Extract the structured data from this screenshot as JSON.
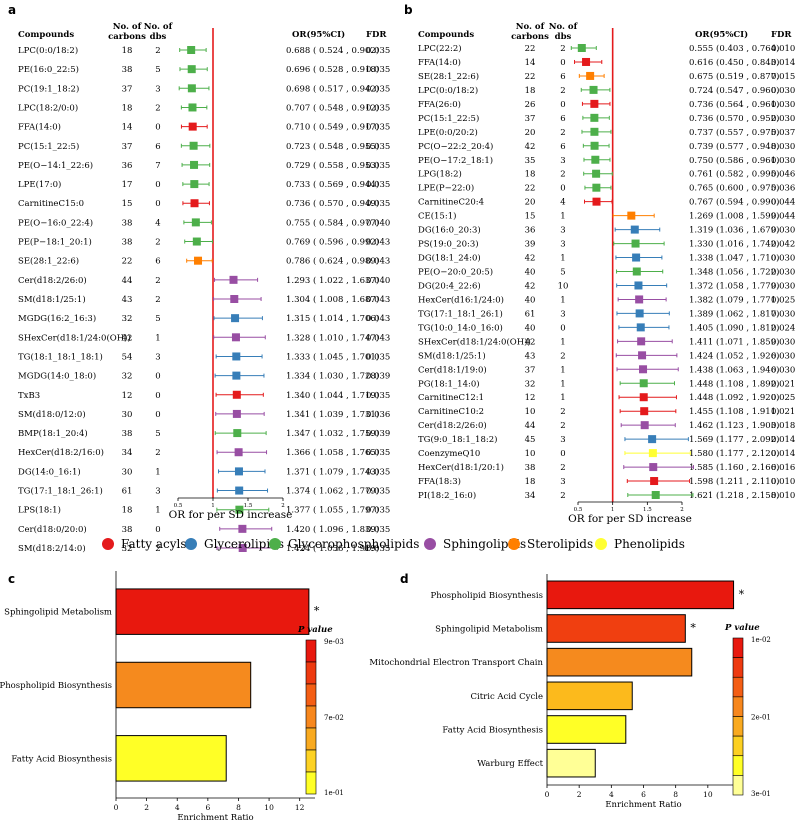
{
  "panels": {
    "a": "a",
    "b": "b",
    "c": "c",
    "d": "d"
  },
  "headers": {
    "compounds": "Compounds",
    "carbons": "No. of carbons",
    "dbs": "No. of dbs",
    "or": "OR(95%CI)",
    "fdr": "FDR"
  },
  "forest_xlabel": "OR for per SD increase",
  "legend": [
    {
      "name": "Fatty acyls",
      "color": "#e41a1c"
    },
    {
      "name": "Glycerolipids",
      "color": "#377eb8"
    },
    {
      "name": "Glycerophospholipids",
      "color": "#4daf4a"
    },
    {
      "name": "Sphingolipids",
      "color": "#984ea3"
    },
    {
      "name": "Sterolipids",
      "color": "#ff7f00"
    },
    {
      "name": "Phenolipids",
      "color": "#ffff33"
    }
  ],
  "chart_data": [
    {
      "panel": "a",
      "type": "forest",
      "xlabel": "OR for per SD increase",
      "xticks": [
        "0.5",
        "1",
        "1.5",
        "2"
      ],
      "xlim": [
        0.5,
        2
      ],
      "reference": 1,
      "rows": [
        {
          "name": "LPC(0:0/18:2)",
          "carbons": "18",
          "dbs": "2",
          "or": 0.688,
          "lo": 0.524,
          "hi": 0.902,
          "text": "0.688 ( 0.524 , 0.902)",
          "fdr": "0.035",
          "cls": "Glycerophospholipids"
        },
        {
          "name": "PE(16:0_22:5)",
          "carbons": "38",
          "dbs": "5",
          "or": 0.696,
          "lo": 0.528,
          "hi": 0.918,
          "text": "0.696 ( 0.528 , 0.918)",
          "fdr": "0.035",
          "cls": "Glycerophospholipids"
        },
        {
          "name": "PC(19:1_18:2)",
          "carbons": "37",
          "dbs": "3",
          "or": 0.698,
          "lo": 0.517,
          "hi": 0.942,
          "text": "0.698 ( 0.517 , 0.942)",
          "fdr": "0.035",
          "cls": "Glycerophospholipids"
        },
        {
          "name": "LPC(18:2/0:0)",
          "carbons": "18",
          "dbs": "2",
          "or": 0.707,
          "lo": 0.548,
          "hi": 0.912,
          "text": "0.707 ( 0.548 , 0.912)",
          "fdr": "0.035",
          "cls": "Glycerophospholipids"
        },
        {
          "name": "FFA(14:0)",
          "carbons": "14",
          "dbs": "0",
          "or": 0.71,
          "lo": 0.549,
          "hi": 0.917,
          "text": "0.710 ( 0.549 , 0.917)",
          "fdr": "0.035",
          "cls": "Fatty acyls"
        },
        {
          "name": "PC(15:1_22:5)",
          "carbons": "37",
          "dbs": "6",
          "or": 0.723,
          "lo": 0.548,
          "hi": 0.955,
          "text": "0.723 ( 0.548 , 0.955)",
          "fdr": "0.035",
          "cls": "Glycerophospholipids"
        },
        {
          "name": "PE(O−14:1_22:6)",
          "carbons": "36",
          "dbs": "7",
          "or": 0.729,
          "lo": 0.558,
          "hi": 0.953,
          "text": "0.729 ( 0.558 , 0.953)",
          "fdr": "0.035",
          "cls": "Glycerophospholipids"
        },
        {
          "name": "LPE(17:0)",
          "carbons": "17",
          "dbs": "0",
          "or": 0.733,
          "lo": 0.569,
          "hi": 0.944,
          "text": "0.733 ( 0.569 , 0.944)",
          "fdr": "0.035",
          "cls": "Glycerophospholipids"
        },
        {
          "name": "CarnitineC15:0",
          "carbons": "15",
          "dbs": "0",
          "or": 0.736,
          "lo": 0.57,
          "hi": 0.949,
          "text": "0.736 ( 0.570 , 0.949)",
          "fdr": "0.035",
          "cls": "Fatty acyls"
        },
        {
          "name": "PE(O−16:0_22:4)",
          "carbons": "38",
          "dbs": "4",
          "or": 0.755,
          "lo": 0.584,
          "hi": 0.977,
          "text": "0.755 ( 0.584 , 0.977)",
          "fdr": "0.040",
          "cls": "Glycerophospholipids"
        },
        {
          "name": "PE(P−18:1_20:1)",
          "carbons": "38",
          "dbs": "2",
          "or": 0.769,
          "lo": 0.596,
          "hi": 0.992,
          "text": "0.769 ( 0.596 , 0.992)",
          "fdr": "0.043",
          "cls": "Glycerophospholipids"
        },
        {
          "name": "SE(28:1_22:6)",
          "carbons": "22",
          "dbs": "6",
          "or": 0.786,
          "lo": 0.624,
          "hi": 0.989,
          "text": "0.786 ( 0.624 , 0.989)",
          "fdr": "0.043",
          "cls": "Sterolipids"
        },
        {
          "name": "Cer(d18:2/26:0)",
          "carbons": "44",
          "dbs": "2",
          "or": 1.293,
          "lo": 1.022,
          "hi": 1.637,
          "text": "1.293 ( 1.022 , 1.637)",
          "fdr": "0.040",
          "cls": "Sphingolipids"
        },
        {
          "name": "SM(d18:1/25:1)",
          "carbons": "43",
          "dbs": "2",
          "or": 1.304,
          "lo": 1.008,
          "hi": 1.687,
          "text": "1.304 ( 1.008 , 1.687)",
          "fdr": "0.043",
          "cls": "Sphingolipids"
        },
        {
          "name": "MGDG(16:2_16:3)",
          "carbons": "32",
          "dbs": "5",
          "or": 1.315,
          "lo": 1.014,
          "hi": 1.706,
          "text": "1.315 ( 1.014 , 1.706)",
          "fdr": "0.043",
          "cls": "Glycerolipids"
        },
        {
          "name": "SHexCer(d18:1/24:0(OH))",
          "carbons": "42",
          "dbs": "1",
          "or": 1.328,
          "lo": 1.01,
          "hi": 1.747,
          "text": "1.328 ( 1.010 , 1.747)",
          "fdr": "0.043",
          "cls": "Sphingolipids"
        },
        {
          "name": "TG(18:1_18:1_18:1)",
          "carbons": "54",
          "dbs": "3",
          "or": 1.333,
          "lo": 1.045,
          "hi": 1.701,
          "text": "1.333 ( 1.045 , 1.701)",
          "fdr": "0.035",
          "cls": "Glycerolipids"
        },
        {
          "name": "MGDG(14:0_18:0)",
          "carbons": "32",
          "dbs": "0",
          "or": 1.334,
          "lo": 1.03,
          "hi": 1.728,
          "text": "1.334 ( 1.030 , 1.728)",
          "fdr": "0.039",
          "cls": "Glycerolipids"
        },
        {
          "name": "TxB3",
          "carbons": "12",
          "dbs": "0",
          "or": 1.34,
          "lo": 1.044,
          "hi": 1.719,
          "text": "1.340 ( 1.044 , 1.719)",
          "fdr": "0.035",
          "cls": "Fatty acyls"
        },
        {
          "name": "SM(d18:0/12:0)",
          "carbons": "30",
          "dbs": "0",
          "or": 1.341,
          "lo": 1.039,
          "hi": 1.731,
          "text": "1.341 ( 1.039 , 1.731)",
          "fdr": "0.036",
          "cls": "Sphingolipids"
        },
        {
          "name": "BMP(18:1_20:4)",
          "carbons": "38",
          "dbs": "5",
          "or": 1.347,
          "lo": 1.032,
          "hi": 1.759,
          "text": "1.347 ( 1.032 , 1.759)",
          "fdr": "0.039",
          "cls": "Glycerophospholipids"
        },
        {
          "name": "HexCer(d18:2/16:0)",
          "carbons": "34",
          "dbs": "2",
          "or": 1.366,
          "lo": 1.058,
          "hi": 1.765,
          "text": "1.366 ( 1.058 , 1.765)",
          "fdr": "0.035",
          "cls": "Sphingolipids"
        },
        {
          "name": "DG(14:0_16:1)",
          "carbons": "30",
          "dbs": "1",
          "or": 1.371,
          "lo": 1.079,
          "hi": 1.743,
          "text": "1.371 ( 1.079 , 1.743)",
          "fdr": "0.035",
          "cls": "Glycerolipids"
        },
        {
          "name": "TG(17:1_18:1_26:1)",
          "carbons": "61",
          "dbs": "3",
          "or": 1.374,
          "lo": 1.062,
          "hi": 1.779,
          "text": "1.374 ( 1.062 , 1.779)",
          "fdr": "0.035",
          "cls": "Glycerolipids"
        },
        {
          "name": "LPS(18:1)",
          "carbons": "18",
          "dbs": "1",
          "or": 1.377,
          "lo": 1.055,
          "hi": 1.797,
          "text": "1.377 ( 1.055 , 1.797)",
          "fdr": "0.035",
          "cls": "Glycerophospholipids"
        },
        {
          "name": "Cer(d18:0/20:0)",
          "carbons": "38",
          "dbs": "0",
          "or": 1.42,
          "lo": 1.096,
          "hi": 1.839,
          "text": "1.420 ( 1.096 , 1.839)",
          "fdr": "0.035",
          "cls": "Sphingolipids"
        },
        {
          "name": "SM(d18:2/14:0)",
          "carbons": "32",
          "dbs": "2",
          "or": 1.424,
          "lo": 1.056,
          "hi": 1.919,
          "text": "1.424 ( 1.056 , 1.919)",
          "fdr": "0.035",
          "cls": "Sphingolipids"
        }
      ]
    },
    {
      "panel": "b",
      "type": "forest",
      "xlabel": "OR for per SD increase",
      "xticks": [
        "0.5",
        "1",
        "1.5",
        "2"
      ],
      "xlim": [
        0.5,
        2
      ],
      "reference": 1,
      "rows": [
        {
          "name": "LPC(22:2)",
          "carbons": "22",
          "dbs": "2",
          "or": 0.555,
          "lo": 0.403,
          "hi": 0.764,
          "text": "0.555 (0.403 , 0.764)",
          "fdr": "0.010",
          "cls": "Glycerophospholipids"
        },
        {
          "name": "FFA(14:0)",
          "carbons": "14",
          "dbs": "0",
          "or": 0.616,
          "lo": 0.45,
          "hi": 0.843,
          "text": "0.616 (0.450 , 0.843)",
          "fdr": "0.014",
          "cls": "Fatty acyls"
        },
        {
          "name": "SE(28:1_22:6)",
          "carbons": "22",
          "dbs": "6",
          "or": 0.675,
          "lo": 0.519,
          "hi": 0.877,
          "text": "0.675 (0.519 , 0.877)",
          "fdr": "0.015",
          "cls": "Sterolipids"
        },
        {
          "name": "LPC(0:0/18:2)",
          "carbons": "18",
          "dbs": "2",
          "or": 0.724,
          "lo": 0.547,
          "hi": 0.96,
          "text": "0.724 (0.547 , 0.960)",
          "fdr": "0.030",
          "cls": "Glycerophospholipids"
        },
        {
          "name": "FFA(26:0)",
          "carbons": "26",
          "dbs": "0",
          "or": 0.736,
          "lo": 0.564,
          "hi": 0.961,
          "text": "0.736 (0.564 , 0.961)",
          "fdr": "0.030",
          "cls": "Fatty acyls"
        },
        {
          "name": "PC(15:1_22:5)",
          "carbons": "37",
          "dbs": "6",
          "or": 0.736,
          "lo": 0.57,
          "hi": 0.952,
          "text": "0.736 (0.570 , 0.952)",
          "fdr": "0.030",
          "cls": "Glycerophospholipids"
        },
        {
          "name": "LPE(0:0/20:2)",
          "carbons": "20",
          "dbs": "2",
          "or": 0.737,
          "lo": 0.557,
          "hi": 0.975,
          "text": "0.737 (0.557 , 0.975)",
          "fdr": "0.037",
          "cls": "Glycerophospholipids"
        },
        {
          "name": "PC(O−22:2_20:4)",
          "carbons": "42",
          "dbs": "6",
          "or": 0.739,
          "lo": 0.577,
          "hi": 0.948,
          "text": "0.739 (0.577 , 0.948)",
          "fdr": "0.030",
          "cls": "Glycerophospholipids"
        },
        {
          "name": "PE(O−17:2_18:1)",
          "carbons": "35",
          "dbs": "3",
          "or": 0.75,
          "lo": 0.586,
          "hi": 0.961,
          "text": "0.750 (0.586 , 0.961)",
          "fdr": "0.030",
          "cls": "Glycerophospholipids"
        },
        {
          "name": "LPG(18:2)",
          "carbons": "18",
          "dbs": "2",
          "or": 0.761,
          "lo": 0.582,
          "hi": 0.995,
          "text": "0.761 (0.582 , 0.995)",
          "fdr": "0.046",
          "cls": "Glycerophospholipids"
        },
        {
          "name": "LPE(P−22:0)",
          "carbons": "22",
          "dbs": "0",
          "or": 0.765,
          "lo": 0.6,
          "hi": 0.975,
          "text": "0.765 (0.600 , 0.975)",
          "fdr": "0.036",
          "cls": "Glycerophospholipids"
        },
        {
          "name": "CarnitineC20:4",
          "carbons": "20",
          "dbs": "4",
          "or": 0.767,
          "lo": 0.594,
          "hi": 0.99,
          "text": "0.767 (0.594 , 0.990)",
          "fdr": "0.044",
          "cls": "Fatty acyls"
        },
        {
          "name": "CE(15:1)",
          "carbons": "15",
          "dbs": "1",
          "or": 1.269,
          "lo": 1.008,
          "hi": 1.599,
          "text": "1.269 (1.008 , 1.599)",
          "fdr": "0.044",
          "cls": "Sterolipids"
        },
        {
          "name": "DG(16:0_20:3)",
          "carbons": "36",
          "dbs": "3",
          "or": 1.319,
          "lo": 1.036,
          "hi": 1.679,
          "text": "1.319 (1.036 , 1.679)",
          "fdr": "0.030",
          "cls": "Glycerolipids"
        },
        {
          "name": "PS(19:0_20:3)",
          "carbons": "39",
          "dbs": "3",
          "or": 1.33,
          "lo": 1.016,
          "hi": 1.742,
          "text": "1.330 (1.016 , 1.742)",
          "fdr": "0.042",
          "cls": "Glycerophospholipids"
        },
        {
          "name": "DG(18:1_24:0)",
          "carbons": "42",
          "dbs": "1",
          "or": 1.338,
          "lo": 1.047,
          "hi": 1.71,
          "text": "1.338 (1.047 , 1.710)",
          "fdr": "0.030",
          "cls": "Glycerolipids"
        },
        {
          "name": "PE(O−20:0_20:5)",
          "carbons": "40",
          "dbs": "5",
          "or": 1.348,
          "lo": 1.056,
          "hi": 1.722,
          "text": "1.348 (1.056 , 1.722)",
          "fdr": "0.030",
          "cls": "Glycerophospholipids"
        },
        {
          "name": "DG(20:4_22:6)",
          "carbons": "42",
          "dbs": "10",
          "or": 1.372,
          "lo": 1.058,
          "hi": 1.779,
          "text": "1.372 (1.058 , 1.779)",
          "fdr": "0.030",
          "cls": "Glycerolipids"
        },
        {
          "name": "HexCer(d16:1/24:0)",
          "carbons": "40",
          "dbs": "1",
          "or": 1.382,
          "lo": 1.079,
          "hi": 1.771,
          "text": "1.382 (1.079 , 1.771)",
          "fdr": "0.025",
          "cls": "Sphingolipids"
        },
        {
          "name": "TG(17:1_18:1_26:1)",
          "carbons": "61",
          "dbs": "3",
          "or": 1.389,
          "lo": 1.062,
          "hi": 1.817,
          "text": "1.389 (1.062 , 1.817)",
          "fdr": "0.030",
          "cls": "Glycerolipids"
        },
        {
          "name": "TG(10:0_14:0_16:0)",
          "carbons": "40",
          "dbs": "0",
          "or": 1.405,
          "lo": 1.09,
          "hi": 1.812,
          "text": "1.405 (1.090 , 1.812)",
          "fdr": "0.024",
          "cls": "Glycerolipids"
        },
        {
          "name": "SHexCer(d18:1/24:0(OH))",
          "carbons": "42",
          "dbs": "1",
          "or": 1.411,
          "lo": 1.071,
          "hi": 1.859,
          "text": "1.411 (1.071 , 1.859)",
          "fdr": "0.030",
          "cls": "Sphingolipids"
        },
        {
          "name": "SM(d18:1/25:1)",
          "carbons": "43",
          "dbs": "2",
          "or": 1.424,
          "lo": 1.052,
          "hi": 1.926,
          "text": "1.424 (1.052 , 1.926)",
          "fdr": "0.030",
          "cls": "Sphingolipids"
        },
        {
          "name": "Cer(d18:1/19:0)",
          "carbons": "37",
          "dbs": "1",
          "or": 1.438,
          "lo": 1.063,
          "hi": 1.946,
          "text": "1.438 (1.063 , 1.946)",
          "fdr": "0.030",
          "cls": "Sphingolipids"
        },
        {
          "name": "PG(18:1_14:0)",
          "carbons": "32",
          "dbs": "1",
          "or": 1.448,
          "lo": 1.108,
          "hi": 1.892,
          "text": "1.448 (1.108 , 1.892)",
          "fdr": "0.021",
          "cls": "Glycerophospholipids"
        },
        {
          "name": "CarnitineC12:1",
          "carbons": "12",
          "dbs": "1",
          "or": 1.448,
          "lo": 1.092,
          "hi": 1.92,
          "text": "1.448 (1.092 , 1.920)",
          "fdr": "0.025",
          "cls": "Fatty acyls"
        },
        {
          "name": "CarnitineC10:2",
          "carbons": "10",
          "dbs": "2",
          "or": 1.455,
          "lo": 1.108,
          "hi": 1.911,
          "text": "1.455 (1.108 , 1.911)",
          "fdr": "0.021",
          "cls": "Fatty acyls"
        },
        {
          "name": "Cer(d18:2/26:0)",
          "carbons": "44",
          "dbs": "2",
          "or": 1.462,
          "lo": 1.123,
          "hi": 1.903,
          "text": "1.462 (1.123 , 1.903)",
          "fdr": "0.018",
          "cls": "Sphingolipids"
        },
        {
          "name": "TG(9:0_18:1_18:2)",
          "carbons": "45",
          "dbs": "3",
          "or": 1.569,
          "lo": 1.177,
          "hi": 2.092,
          "text": "1.569 (1.177 , 2.092)",
          "fdr": "0.014",
          "cls": "Glycerolipids"
        },
        {
          "name": "CoenzymeQ10",
          "carbons": "10",
          "dbs": "0",
          "or": 1.58,
          "lo": 1.177,
          "hi": 2.12,
          "text": "1.580 (1.177 , 2.120)",
          "fdr": "0.014",
          "cls": "Phenolipids"
        },
        {
          "name": "HexCer(d18:1/20:1)",
          "carbons": "38",
          "dbs": "2",
          "or": 1.585,
          "lo": 1.16,
          "hi": 2.166,
          "text": "1.585 (1.160 , 2.166)",
          "fdr": "0.016",
          "cls": "Sphingolipids"
        },
        {
          "name": "FFA(18:3)",
          "carbons": "18",
          "dbs": "3",
          "or": 1.598,
          "lo": 1.211,
          "hi": 2.11,
          "text": "1.598 (1.211 , 2.110)",
          "fdr": "0.010",
          "cls": "Fatty acyls"
        },
        {
          "name": "PI(18:2_16:0)",
          "carbons": "34",
          "dbs": "2",
          "or": 1.621,
          "lo": 1.218,
          "hi": 2.158,
          "text": "1.621 (1.218 , 2.158)",
          "fdr": "0.010",
          "cls": "Glycerophospholipids"
        }
      ]
    },
    {
      "panel": "c",
      "type": "bar",
      "orientation": "horizontal",
      "categories": [
        "Sphingolipid Metabolism",
        "Phospholipid Biosynthesis",
        "Fatty Acid Biosynthesis"
      ],
      "values": [
        12.6,
        8.8,
        7.2
      ],
      "pvalues": [
        0.009,
        0.07,
        0.1
      ],
      "significant": [
        true,
        false,
        false
      ],
      "xlabel": "Enrichment Ratio",
      "xticks": [
        0,
        2,
        4,
        6,
        8,
        10,
        12
      ],
      "xlim": [
        0,
        13
      ],
      "colorbar": {
        "title": "P value",
        "ticks": [
          "9e-03",
          "7e-02",
          "1e-01"
        ]
      }
    },
    {
      "panel": "d",
      "type": "bar",
      "orientation": "horizontal",
      "categories": [
        "Phospholipid Biosynthesis",
        "Sphingolipid Metabolism",
        "Mitochondrial Electron Transport Chain",
        "Citric Acid Cycle",
        "Fatty Acid Biosynthesis",
        "Warburg Effect"
      ],
      "values": [
        11.6,
        8.6,
        9.0,
        5.3,
        4.9,
        3.0
      ],
      "pvalues": [
        0.01,
        0.05,
        0.12,
        0.2,
        0.25,
        0.3
      ],
      "significant": [
        true,
        true,
        false,
        false,
        false,
        false
      ],
      "xlabel": "Enrichment Ratio",
      "xticks": [
        0,
        2,
        4,
        6,
        8,
        10
      ],
      "xlim": [
        0,
        12
      ],
      "colorbar": {
        "title": "P value",
        "ticks": [
          "1e-02",
          "2e-01",
          "3e-01"
        ]
      }
    }
  ]
}
